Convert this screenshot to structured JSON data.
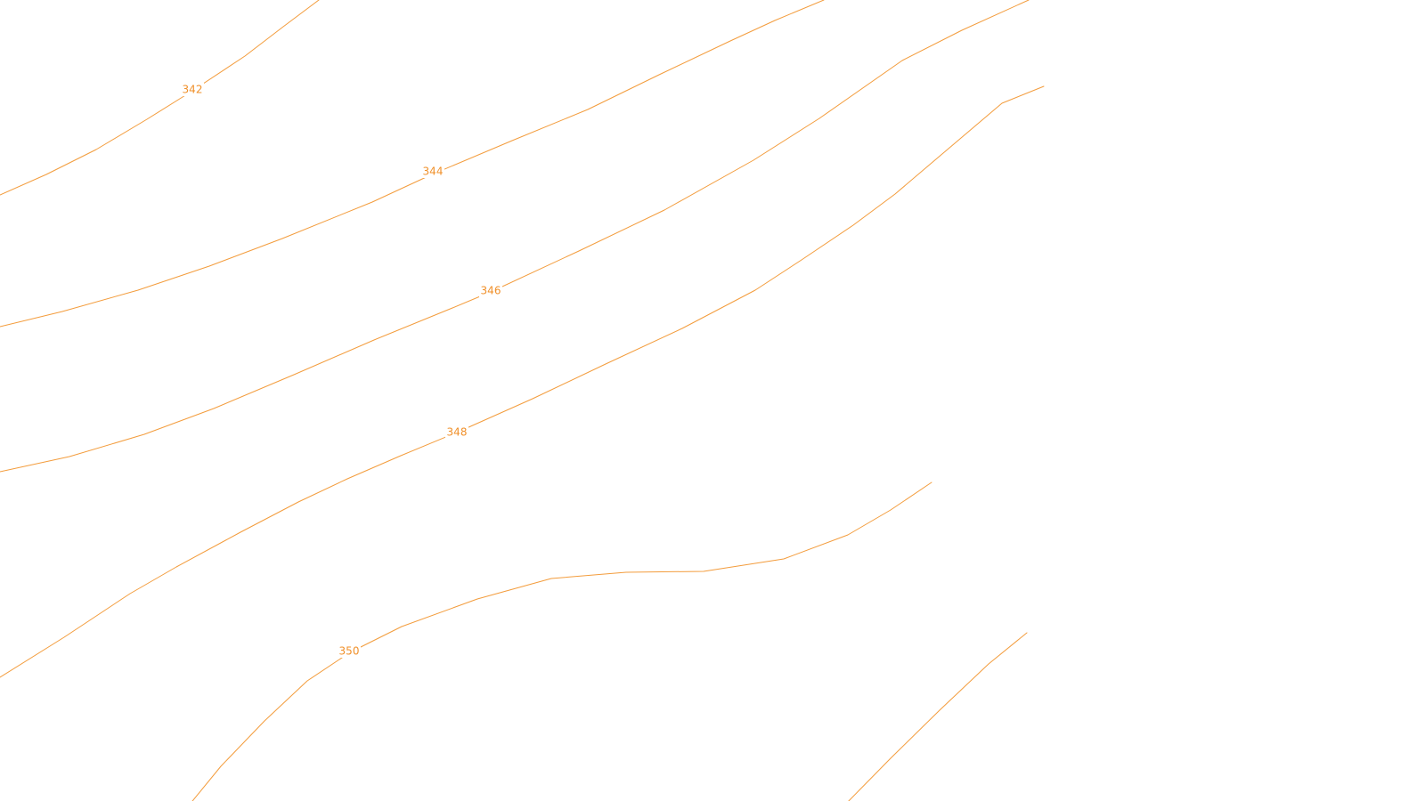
{
  "map": {
    "layer": "contours",
    "colors": {
      "contour_line": "#f39c3c",
      "contour_label": "#f0902a",
      "background": "#ffffff"
    },
    "labels": {
      "c342": "342",
      "c344": "344",
      "c346": "346",
      "c348": "348",
      "c350": "350"
    }
  }
}
